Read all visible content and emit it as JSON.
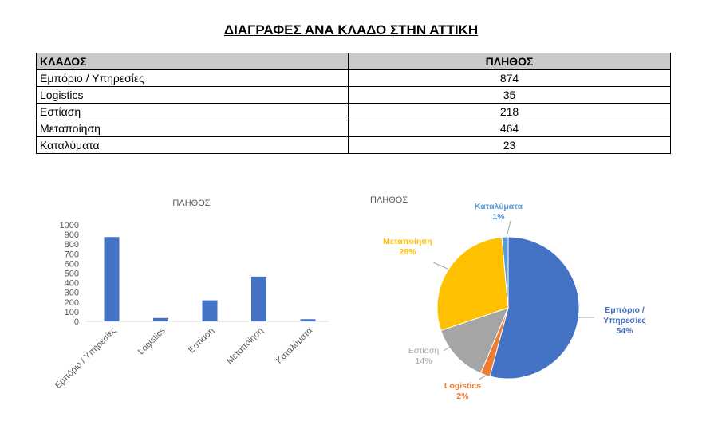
{
  "title": "ΔΙΑΓΡΑΦΕΣ ΑΝΑ ΚΛΑΔΟ ΣΤΗΝ ΑΤΤΙΚΗ",
  "table": {
    "headers": [
      "ΚΛΑΔΟΣ",
      "ΠΛΗΘΟΣ"
    ],
    "rows": [
      [
        "Εμπόριο / Υπηρεσίες",
        "874"
      ],
      [
        "Logistics",
        "35"
      ],
      [
        "Εστίαση",
        "218"
      ],
      [
        "Μεταποίηση",
        "464"
      ],
      [
        "Καταλύματα",
        "23"
      ]
    ]
  },
  "chart_data": [
    {
      "type": "bar",
      "title": "ΠΛΗΘΟΣ",
      "categories": [
        "Εμπόριο / Υπηρεσίες",
        "Logistics",
        "Εστίαση",
        "Μεταποίηση",
        "Καταλύματα"
      ],
      "values": [
        874,
        35,
        218,
        464,
        23
      ],
      "ylim": [
        0,
        1000
      ],
      "yticks": [
        "0",
        "100",
        "200",
        "300",
        "400",
        "500",
        "600",
        "700",
        "800",
        "900",
        "1000"
      ],
      "grid": false,
      "color": "#4472c4"
    },
    {
      "type": "pie",
      "title": "ΠΛΗΘΟΣ",
      "categories": [
        "Εμπόριο / Υπηρεσίες",
        "Logistics",
        "Εστίαση",
        "Μεταποίηση",
        "Καταλύματα"
      ],
      "values": [
        874,
        35,
        218,
        464,
        23
      ],
      "labels": [
        [
          "Εμπόριο /",
          "Υπηρεσίες",
          "54%"
        ],
        [
          "Logistics",
          "2%"
        ],
        [
          "Εστίαση",
          "14%"
        ],
        [
          "Μεταποίηση",
          "29%"
        ],
        [
          "Καταλύματα",
          "1%"
        ]
      ],
      "colors": [
        "#4472c4",
        "#ed7d31",
        "#a5a5a5",
        "#ffc000",
        "#5b9bd5"
      ]
    }
  ]
}
